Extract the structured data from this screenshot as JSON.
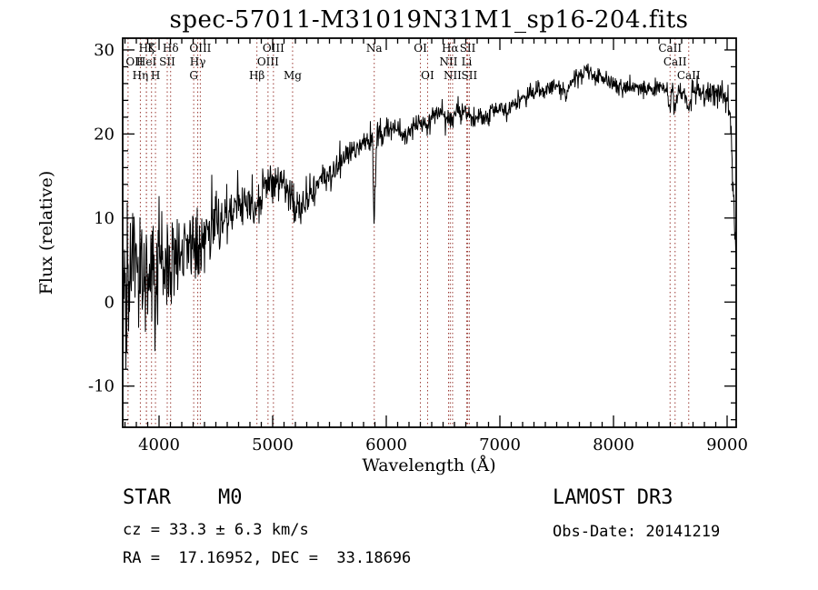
{
  "chart_data": {
    "type": "line",
    "title": "spec-57011-M31019N31M1_sp16-204.fits",
    "xlabel": "Wavelength (Å)",
    "ylabel": "Flux (relative)",
    "xlim": [
      3680,
      9080
    ],
    "ylim": [
      -14.9,
      31.4
    ],
    "x_major_ticks": [
      4000,
      5000,
      6000,
      7000,
      8000,
      9000
    ],
    "x_minor_step": 100,
    "y_major_ticks": [
      -10,
      0,
      10,
      20,
      30
    ],
    "y_minor_step": 2,
    "grid": false,
    "line_color": "#000000",
    "marker_color": "#9b3b35",
    "sample_step_angstrom": 4,
    "continuum_anchors": [
      [
        3680,
        2
      ],
      [
        3720,
        3
      ],
      [
        3760,
        3.2
      ],
      [
        3800,
        3.8
      ],
      [
        3840,
        3.6
      ],
      [
        3880,
        4
      ],
      [
        3920,
        4.2
      ],
      [
        3960,
        4
      ],
      [
        4000,
        4.8
      ],
      [
        4050,
        5.2
      ],
      [
        4101,
        4.8
      ],
      [
        4150,
        5.8
      ],
      [
        4200,
        6.2
      ],
      [
        4250,
        6.4
      ],
      [
        4305,
        6.2
      ],
      [
        4340,
        6.8
      ],
      [
        4400,
        7.6
      ],
      [
        4500,
        8.8
      ],
      [
        4600,
        10
      ],
      [
        4700,
        11
      ],
      [
        4780,
        12
      ],
      [
        4861,
        11.6
      ],
      [
        4920,
        13
      ],
      [
        4980,
        13.8
      ],
      [
        5050,
        14.2
      ],
      [
        5100,
        13.8
      ],
      [
        5170,
        12.6
      ],
      [
        5230,
        11
      ],
      [
        5300,
        12
      ],
      [
        5380,
        13.8
      ],
      [
        5450,
        14.8
      ],
      [
        5550,
        16
      ],
      [
        5650,
        17.4
      ],
      [
        5750,
        18.4
      ],
      [
        5850,
        19.3
      ],
      [
        5880,
        19.4
      ],
      [
        5893,
        8.5
      ],
      [
        5915,
        19.4
      ],
      [
        6000,
        20.3
      ],
      [
        6080,
        20.8
      ],
      [
        6160,
        19.8
      ],
      [
        6230,
        20.6
      ],
      [
        6300,
        21.6
      ],
      [
        6360,
        21.2
      ],
      [
        6430,
        22.2
      ],
      [
        6500,
        22.4
      ],
      [
        6563,
        21.4
      ],
      [
        6620,
        22.8
      ],
      [
        6700,
        22.6
      ],
      [
        6760,
        21.8
      ],
      [
        6820,
        22.6
      ],
      [
        6870,
        21.4
      ],
      [
        6930,
        22.8
      ],
      [
        7000,
        23.2
      ],
      [
        7060,
        22.2
      ],
      [
        7120,
        23.4
      ],
      [
        7200,
        24.2
      ],
      [
        7300,
        24.9
      ],
      [
        7400,
        25.4
      ],
      [
        7500,
        26.2
      ],
      [
        7590,
        24.6
      ],
      [
        7650,
        26.6
      ],
      [
        7700,
        27.2
      ],
      [
        7780,
        27.4
      ],
      [
        7850,
        26.9
      ],
      [
        7920,
        26.4
      ],
      [
        8000,
        26
      ],
      [
        8080,
        25.5
      ],
      [
        8160,
        25.6
      ],
      [
        8240,
        25.4
      ],
      [
        8320,
        25.2
      ],
      [
        8400,
        25.4
      ],
      [
        8470,
        25.2
      ],
      [
        8498,
        23
      ],
      [
        8520,
        25
      ],
      [
        8542,
        23
      ],
      [
        8580,
        25.2
      ],
      [
        8620,
        25.1
      ],
      [
        8662,
        22.8
      ],
      [
        8700,
        25
      ],
      [
        8760,
        25.2
      ],
      [
        8820,
        24.6
      ],
      [
        8880,
        25
      ],
      [
        8930,
        24.4
      ],
      [
        8970,
        24.8
      ],
      [
        9010,
        23.5
      ],
      [
        9040,
        18
      ],
      [
        9065,
        10
      ],
      [
        9080,
        2
      ]
    ],
    "noise_sigma_anchors": [
      [
        3680,
        5.2
      ],
      [
        3750,
        5.0
      ],
      [
        3850,
        4.6
      ],
      [
        3950,
        4.2
      ],
      [
        4050,
        3.6
      ],
      [
        4150,
        3.2
      ],
      [
        4300,
        2.6
      ],
      [
        4500,
        2.0
      ],
      [
        4700,
        1.6
      ],
      [
        4900,
        1.3
      ],
      [
        5100,
        1.1
      ],
      [
        5400,
        0.95
      ],
      [
        5700,
        0.85
      ],
      [
        6000,
        0.8
      ],
      [
        6300,
        0.7
      ],
      [
        6563,
        0.65
      ],
      [
        6900,
        0.6
      ],
      [
        7200,
        0.55
      ],
      [
        7500,
        0.6
      ],
      [
        7800,
        0.6
      ],
      [
        8100,
        0.55
      ],
      [
        8400,
        0.6
      ],
      [
        8600,
        0.75
      ],
      [
        8800,
        0.8
      ],
      [
        8950,
        0.9
      ],
      [
        9080,
        1.2
      ]
    ],
    "spectral_line_markers": [
      {
        "label": "Hζ",
        "wavelength": 3889.0,
        "row": 1
      },
      {
        "label": "K",
        "wavelength": 3933.7,
        "row": 1
      },
      {
        "label": "Hδ",
        "wavelength": 4101.7,
        "row": 1
      },
      {
        "label": "OIII",
        "wavelength": 4363.2,
        "row": 1
      },
      {
        "label": "OIII",
        "wavelength": 5006.8,
        "row": 1
      },
      {
        "label": "Na",
        "wavelength": 5894.0,
        "row": 1
      },
      {
        "label": "OI",
        "wavelength": 6300.3,
        "row": 1
      },
      {
        "label": "Hα",
        "wavelength": 6562.8,
        "row": 1
      },
      {
        "label": "SII",
        "wavelength": 6716.4,
        "row": 1
      },
      {
        "label": "CaII",
        "wavelength": 8498.0,
        "row": 1
      },
      {
        "label": "OII",
        "wavelength": 3727.1,
        "row": 2
      },
      {
        "label": "HeI",
        "wavelength": 3888.6,
        "row": 2
      },
      {
        "label": "SII",
        "wavelength": 4072.0,
        "row": 2
      },
      {
        "label": "Hγ",
        "wavelength": 4340.5,
        "row": 2
      },
      {
        "label": "OIII",
        "wavelength": 4958.9,
        "row": 2
      },
      {
        "label": "NII",
        "wavelength": 6548.1,
        "row": 2
      },
      {
        "label": "Li",
        "wavelength": 6707.8,
        "row": 2
      },
      {
        "label": "CaII",
        "wavelength": 8542.1,
        "row": 2
      },
      {
        "label": "Hη",
        "wavelength": 3835.4,
        "row": 3
      },
      {
        "label": "H",
        "wavelength": 3968.5,
        "row": 3
      },
      {
        "label": "G",
        "wavelength": 4305.0,
        "row": 3
      },
      {
        "label": "Hβ",
        "wavelength": 4861.3,
        "row": 3
      },
      {
        "label": "Mg",
        "wavelength": 5175.4,
        "row": 3
      },
      {
        "label": "OI",
        "wavelength": 6363.8,
        "row": 3
      },
      {
        "label": "NII",
        "wavelength": 6583.5,
        "row": 3
      },
      {
        "label": "SII",
        "wavelength": 6730.8,
        "row": 3
      },
      {
        "label": "CaII",
        "wavelength": 8662.1,
        "row": 3
      }
    ]
  },
  "footer": {
    "class": "STAR",
    "subclass": "M0",
    "survey": "LAMOST DR3",
    "cz_line": "cz = 33.3 ± 6.3 km/s",
    "obs_date_line": "Obs-Date: 20141219",
    "ra_dec_line": "RA =  17.16952, DEC =  33.18696"
  }
}
